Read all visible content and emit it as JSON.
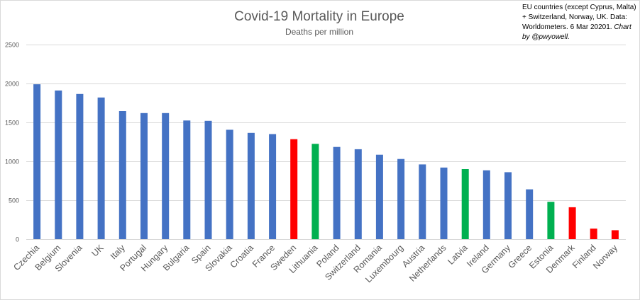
{
  "chart_data": {
    "type": "bar",
    "title": "Covid-19 Mortality in Europe",
    "subtitle": "Deaths per million",
    "note": {
      "text": "EU countries (except Cyprus, Malta) + Switzerland, Norway, UK. Data: Worldometers. 6 Mar 20201.",
      "credit": "Chart by @pwyowell."
    },
    "categories": [
      "Czechia",
      "Belgium",
      "Slovenia",
      "UK",
      "Italy",
      "Portugal",
      "Hungary",
      "Bulgaria",
      "Spain",
      "Slovakia",
      "Croatia",
      "France",
      "Sweden",
      "Lithuania",
      "Poland",
      "Switzerland",
      "Romania",
      "Luxembourg",
      "Austria",
      "Netherlands",
      "Latvia",
      "Ireland",
      "Germany",
      "Greece",
      "Estonia",
      "Denmark",
      "Finland",
      "Norway"
    ],
    "values": [
      1990,
      1910,
      1865,
      1820,
      1645,
      1620,
      1620,
      1525,
      1520,
      1405,
      1365,
      1350,
      1285,
      1225,
      1185,
      1155,
      1085,
      1030,
      960,
      920,
      900,
      885,
      860,
      640,
      480,
      410,
      135,
      115
    ],
    "bar_colors": [
      "#4472c4",
      "#4472c4",
      "#4472c4",
      "#4472c4",
      "#4472c4",
      "#4472c4",
      "#4472c4",
      "#4472c4",
      "#4472c4",
      "#4472c4",
      "#4472c4",
      "#4472c4",
      "#ff0000",
      "#00b050",
      "#4472c4",
      "#4472c4",
      "#4472c4",
      "#4472c4",
      "#4472c4",
      "#4472c4",
      "#00b050",
      "#4472c4",
      "#4472c4",
      "#4472c4",
      "#00b050",
      "#ff0000",
      "#ff0000",
      "#ff0000"
    ],
    "yticks": [
      0,
      500,
      1000,
      1500,
      2000,
      2500
    ],
    "ylim": [
      0,
      2500
    ],
    "xlabel": "",
    "ylabel": "",
    "grid": true,
    "legend": "none"
  }
}
